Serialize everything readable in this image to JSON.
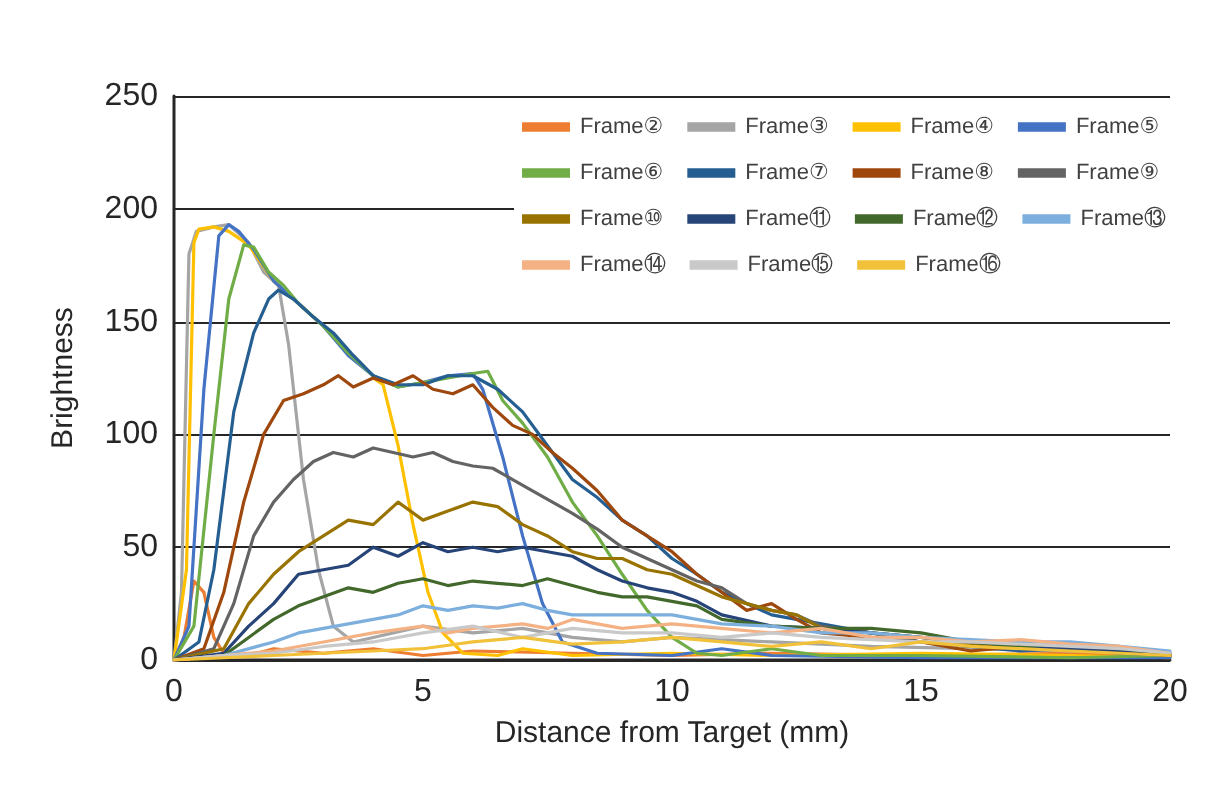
{
  "chart_data": {
    "type": "line",
    "xlabel": "Distance from Target (mm)",
    "ylabel": "Brightness",
    "xlim": [
      0,
      20
    ],
    "xticks": [
      0,
      5,
      10,
      15,
      20
    ],
    "ylim": [
      0,
      250
    ],
    "yticks": [
      0,
      50,
      100,
      150,
      200,
      250
    ],
    "grid": "y",
    "legend": "top right",
    "line_style": "solid",
    "series": [
      {
        "name": "Frame②",
        "color": "#ed7d31",
        "x": [
          0,
          0.2,
          0.4,
          0.6,
          0.8,
          1,
          1.5,
          2,
          3,
          4,
          5,
          6,
          8,
          10,
          12,
          15,
          18,
          20
        ],
        "values": [
          0,
          10,
          35,
          30,
          10,
          3,
          2,
          5,
          3,
          5,
          2,
          4,
          3,
          2,
          3,
          2,
          3,
          2
        ]
      },
      {
        "name": "Frame③",
        "color": "#a5a5a5",
        "x": [
          0,
          0.15,
          0.3,
          0.45,
          0.8,
          1.1,
          1.5,
          1.8,
          2.1,
          2.3,
          2.6,
          2.9,
          3.2,
          3.6,
          4,
          5,
          6,
          7,
          8,
          9,
          10,
          12,
          14,
          16,
          18,
          20
        ],
        "values": [
          0,
          30,
          180,
          190,
          192,
          193,
          185,
          172,
          166,
          140,
          80,
          40,
          15,
          8,
          10,
          15,
          12,
          14,
          10,
          8,
          10,
          8,
          6,
          5,
          4,
          3
        ]
      },
      {
        "name": "Frame④",
        "color": "#ffc000",
        "x": [
          0,
          0.25,
          0.4,
          0.5,
          0.8,
          1.1,
          1.5,
          2,
          2.5,
          3,
          3.5,
          4,
          4.2,
          4.5,
          4.8,
          5.1,
          5.4,
          5.8,
          6.5,
          7,
          8,
          10,
          12,
          15,
          18,
          20
        ],
        "values": [
          0,
          40,
          185,
          191,
          192,
          190,
          184,
          168,
          158,
          148,
          null,
          125,
          122,
          95,
          60,
          30,
          12,
          3,
          2,
          5,
          2,
          3,
          2,
          3,
          2,
          1
        ]
      },
      {
        "name": "Frame⑤",
        "color": "#4472c4",
        "x": [
          0,
          0.3,
          0.6,
          0.9,
          1.1,
          1.3,
          1.6,
          2,
          2.5,
          3,
          3.5,
          4,
          4.5,
          5,
          5.5,
          6,
          6.2,
          6.6,
          7,
          7.4,
          7.8,
          8.5,
          10,
          11,
          12,
          15,
          20
        ],
        "values": [
          0,
          15,
          120,
          188,
          193,
          190,
          182,
          168,
          158,
          148,
          135,
          126,
          121,
          123,
          126,
          127,
          120,
          90,
          55,
          25,
          8,
          3,
          2,
          5,
          2,
          1,
          1
        ]
      },
      {
        "name": "Frame⑥",
        "color": "#70ad47",
        "x": [
          0,
          0.4,
          0.8,
          1.1,
          1.4,
          1.6,
          1.9,
          2.2,
          2.5,
          3,
          3.5,
          4,
          4.5,
          5,
          5.5,
          6,
          6.3,
          6.6,
          7,
          7.5,
          8,
          8.5,
          9,
          9.5,
          10,
          10.5,
          11,
          12,
          13,
          15,
          18,
          20
        ],
        "values": [
          0,
          15,
          100,
          160,
          184,
          183,
          172,
          166,
          158,
          148,
          136,
          126,
          121,
          123,
          125,
          127,
          128,
          115,
          105,
          90,
          70,
          55,
          38,
          22,
          10,
          3,
          2,
          5,
          2,
          2,
          1,
          2
        ]
      },
      {
        "name": "Frame⑦",
        "color": "#255e91",
        "x": [
          0,
          0.5,
          0.8,
          1.2,
          1.6,
          1.9,
          2.1,
          2.4,
          2.8,
          3.2,
          3.6,
          4,
          4.5,
          5,
          5.5,
          6,
          6.5,
          7,
          7.5,
          8,
          8.5,
          9,
          9.5,
          10,
          10.5,
          11,
          11.5,
          12,
          13,
          14,
          15,
          16,
          17,
          18,
          19,
          20
        ],
        "values": [
          0,
          8,
          40,
          110,
          145,
          160,
          164,
          160,
          152,
          145,
          135,
          126,
          122,
          122,
          126,
          126,
          120,
          110,
          95,
          80,
          72,
          62,
          55,
          45,
          38,
          30,
          25,
          20,
          16,
          12,
          8,
          6,
          4,
          5,
          3,
          2
        ]
      },
      {
        "name": "Frame⑧",
        "color": "#9e480e",
        "x": [
          0,
          0.6,
          1,
          1.4,
          1.8,
          2.2,
          2.6,
          3,
          3.3,
          3.6,
          4,
          4.4,
          4.8,
          5.2,
          5.6,
          6,
          6.4,
          6.8,
          7.2,
          7.6,
          8,
          8.5,
          9,
          9.5,
          10,
          10.5,
          11,
          11.5,
          12,
          12.5,
          13,
          14,
          15,
          16,
          17,
          18,
          19,
          20
        ],
        "values": [
          0,
          5,
          30,
          70,
          100,
          115,
          118,
          122,
          126,
          121,
          125,
          122,
          126,
          120,
          118,
          122,
          112,
          104,
          100,
          92,
          85,
          75,
          62,
          55,
          48,
          38,
          30,
          22,
          25,
          18,
          12,
          10,
          8,
          4,
          6,
          5,
          4,
          2
        ]
      },
      {
        "name": "Frame⑨",
        "color": "#636363",
        "x": [
          0,
          0.8,
          1.2,
          1.6,
          2,
          2.4,
          2.8,
          3.2,
          3.6,
          4,
          4.4,
          4.8,
          5.2,
          5.6,
          6,
          6.4,
          6.8,
          7.2,
          7.6,
          8,
          8.5,
          9,
          9.5,
          10,
          10.5,
          11,
          11.5,
          12,
          12.5,
          13,
          14,
          15,
          16,
          17,
          18,
          19,
          20
        ],
        "values": [
          0,
          5,
          25,
          55,
          70,
          80,
          88,
          92,
          90,
          94,
          92,
          90,
          92,
          88,
          86,
          85,
          80,
          75,
          70,
          65,
          58,
          50,
          45,
          40,
          35,
          32,
          25,
          22,
          20,
          15,
          12,
          8,
          6,
          7,
          5,
          4,
          3
        ]
      },
      {
        "name": "Frame⑩",
        "color": "#997300",
        "x": [
          0,
          1,
          1.5,
          2,
          2.5,
          3,
          3.5,
          4,
          4.5,
          5,
          5.5,
          6,
          6.5,
          7,
          7.5,
          8,
          8.5,
          9,
          9.5,
          10,
          10.5,
          11,
          11.5,
          12,
          12.5,
          13,
          14,
          15,
          16,
          17,
          18,
          19,
          20
        ],
        "values": [
          0,
          5,
          25,
          38,
          48,
          55,
          62,
          60,
          70,
          62,
          66,
          70,
          68,
          60,
          55,
          48,
          45,
          45,
          40,
          38,
          33,
          28,
          25,
          22,
          20,
          14,
          12,
          10,
          7,
          6,
          5,
          4,
          2
        ]
      },
      {
        "name": "Frame⑪",
        "color": "#264478",
        "x": [
          0,
          1,
          1.5,
          2,
          2.5,
          3,
          3.5,
          4,
          4.5,
          5,
          5.5,
          6,
          6.5,
          7,
          7.5,
          8,
          8.5,
          9,
          9.5,
          10,
          10.5,
          11,
          12,
          13,
          14,
          15,
          16,
          17,
          18,
          19,
          20
        ],
        "values": [
          0,
          3,
          15,
          25,
          38,
          40,
          42,
          50,
          46,
          52,
          48,
          50,
          48,
          50,
          48,
          46,
          40,
          35,
          32,
          30,
          26,
          20,
          15,
          14,
          12,
          10,
          8,
          6,
          5,
          4,
          3
        ]
      },
      {
        "name": "Frame⑫",
        "color": "#43682b",
        "x": [
          0,
          1,
          1.5,
          2,
          2.5,
          3,
          3.5,
          4,
          4.5,
          5,
          5.5,
          6,
          6.5,
          7,
          7.5,
          8,
          8.5,
          9,
          9.5,
          10,
          10.5,
          11,
          12,
          13,
          14,
          15,
          16,
          17,
          18,
          19,
          20
        ],
        "values": [
          0,
          2,
          10,
          18,
          24,
          28,
          32,
          30,
          34,
          36,
          33,
          35,
          34,
          33,
          36,
          33,
          30,
          28,
          28,
          26,
          24,
          18,
          15,
          14,
          14,
          12,
          8,
          6,
          7,
          5,
          3
        ]
      },
      {
        "name": "Frame⑬",
        "color": "#7cafdd",
        "x": [
          0,
          1,
          2,
          2.5,
          3,
          3.5,
          4,
          4.5,
          5,
          5.5,
          6,
          6.5,
          7,
          7.5,
          8,
          9,
          10,
          11,
          12,
          13,
          14,
          15,
          16,
          17,
          18,
          19,
          20
        ],
        "values": [
          0,
          2,
          8,
          12,
          14,
          16,
          18,
          20,
          24,
          22,
          24,
          23,
          25,
          22,
          20,
          20,
          20,
          16,
          15,
          12,
          12,
          10,
          9,
          8,
          8,
          6,
          4
        ]
      },
      {
        "name": "Frame⑭",
        "color": "#f4b183",
        "x": [
          0,
          1,
          2,
          3,
          4,
          5,
          5.5,
          6,
          7,
          7.5,
          8,
          9,
          10,
          11,
          12,
          13,
          14,
          15,
          16,
          17,
          18,
          19,
          20
        ],
        "values": [
          0,
          2,
          4,
          8,
          12,
          15,
          12,
          14,
          16,
          14,
          18,
          14,
          16,
          14,
          12,
          14,
          10,
          10,
          8,
          9,
          7,
          6,
          3
        ]
      },
      {
        "name": "Frame⑮",
        "color": "#c9c9c9",
        "x": [
          0,
          1,
          2,
          3,
          4,
          5,
          6,
          7,
          8,
          9,
          10,
          11,
          12,
          13,
          14,
          15,
          16,
          17,
          18,
          19,
          20
        ],
        "values": [
          0,
          2,
          3,
          6,
          8,
          12,
          15,
          10,
          14,
          12,
          12,
          10,
          12,
          10,
          9,
          8,
          8,
          7,
          6,
          5,
          3
        ]
      },
      {
        "name": "Frame⑯",
        "color": "#f2c13a",
        "x": [
          0,
          1,
          2,
          3,
          4,
          5,
          6,
          7,
          8,
          9,
          10,
          11,
          12,
          13,
          14,
          15,
          16,
          17,
          18,
          19,
          20
        ],
        "values": [
          0,
          1,
          2,
          3,
          4,
          5,
          8,
          10,
          7,
          8,
          10,
          8,
          6,
          8,
          5,
          8,
          6,
          5,
          4,
          3,
          2
        ]
      }
    ]
  }
}
